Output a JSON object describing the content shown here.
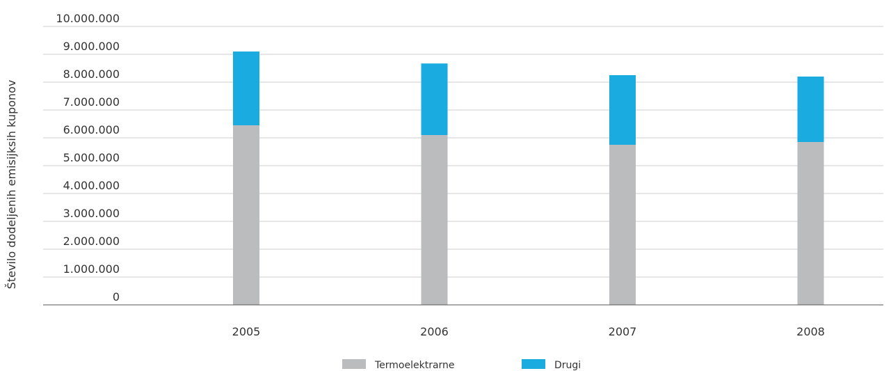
{
  "chart_data": {
    "type": "bar",
    "stacked": true,
    "categories": [
      "2005",
      "2006",
      "2007",
      "2008"
    ],
    "series": [
      {
        "name": "Termoelektrarne",
        "color": "#bbbcbe",
        "values": [
          6450000,
          6100000,
          5750000,
          5850000
        ]
      },
      {
        "name": "Drugi",
        "color": "#1aabe0",
        "values": [
          2650000,
          2570000,
          2500000,
          2350000
        ]
      }
    ],
    "title": "",
    "xlabel": "",
    "ylabel": "Število dodeljenih emisijksih kuponov",
    "ylim": [
      0,
      10000000
    ],
    "yticks": [
      "0",
      "1.000.000",
      "2.000.000",
      "3.000.000",
      "4.000.000",
      "5.000.000",
      "6.000.000",
      "7.000.000",
      "8.000.000",
      "9.000.000",
      "10.000.000"
    ],
    "grid": true,
    "legend": "bottom"
  },
  "colors": {
    "gridline": "#cccccc",
    "axis": "#555555"
  }
}
